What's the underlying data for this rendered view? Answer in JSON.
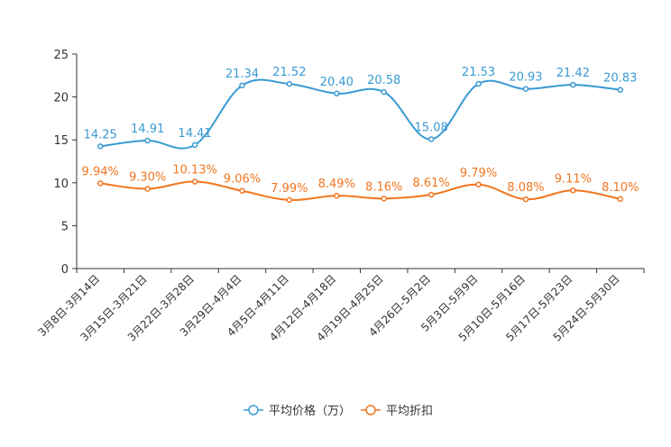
{
  "chart_data": {
    "type": "line",
    "title": "",
    "xlabel": "",
    "ylabel": "",
    "ylim": [
      0,
      25
    ],
    "yticks": [
      "0",
      "5",
      "10",
      "15",
      "20",
      "25"
    ],
    "categories": [
      "3月8日-3月14日",
      "3月15日-3月21日",
      "3月22日-3月28日",
      "3月29日-4月4日",
      "4月5日-4月11日",
      "4月12日-4月18日",
      "4月19日-4月25日",
      "4月26日-5月2日",
      "5月3日-5月9日",
      "5月10日-5月16日",
      "5月17日-5月23日",
      "5月24日-5月30日"
    ],
    "series": [
      {
        "name": "平均价格（万）",
        "color": "#3a9ad3",
        "values": [
          14.25,
          14.91,
          14.41,
          21.34,
          21.52,
          20.4,
          20.58,
          15.08,
          21.53,
          20.93,
          21.42,
          20.83
        ],
        "labels": [
          "14.25",
          "14.91",
          "14.41",
          "21.34",
          "21.52",
          "20.40",
          "20.58",
          "15.08",
          "21.53",
          "20.93",
          "21.42",
          "20.83"
        ]
      },
      {
        "name": "平均折扣",
        "color": "#f27620",
        "values": [
          9.94,
          9.3,
          10.13,
          9.06,
          7.99,
          8.49,
          8.16,
          8.61,
          9.79,
          8.08,
          9.11,
          8.1
        ],
        "labels": [
          "9.94%",
          "9.30%",
          "10.13%",
          "9.06%",
          "7.99%",
          "8.49%",
          "8.16%",
          "8.61%",
          "9.79%",
          "8.08%",
          "9.11%",
          "8.10%"
        ]
      }
    ],
    "legend_position": "bottom-center",
    "grid": false
  }
}
